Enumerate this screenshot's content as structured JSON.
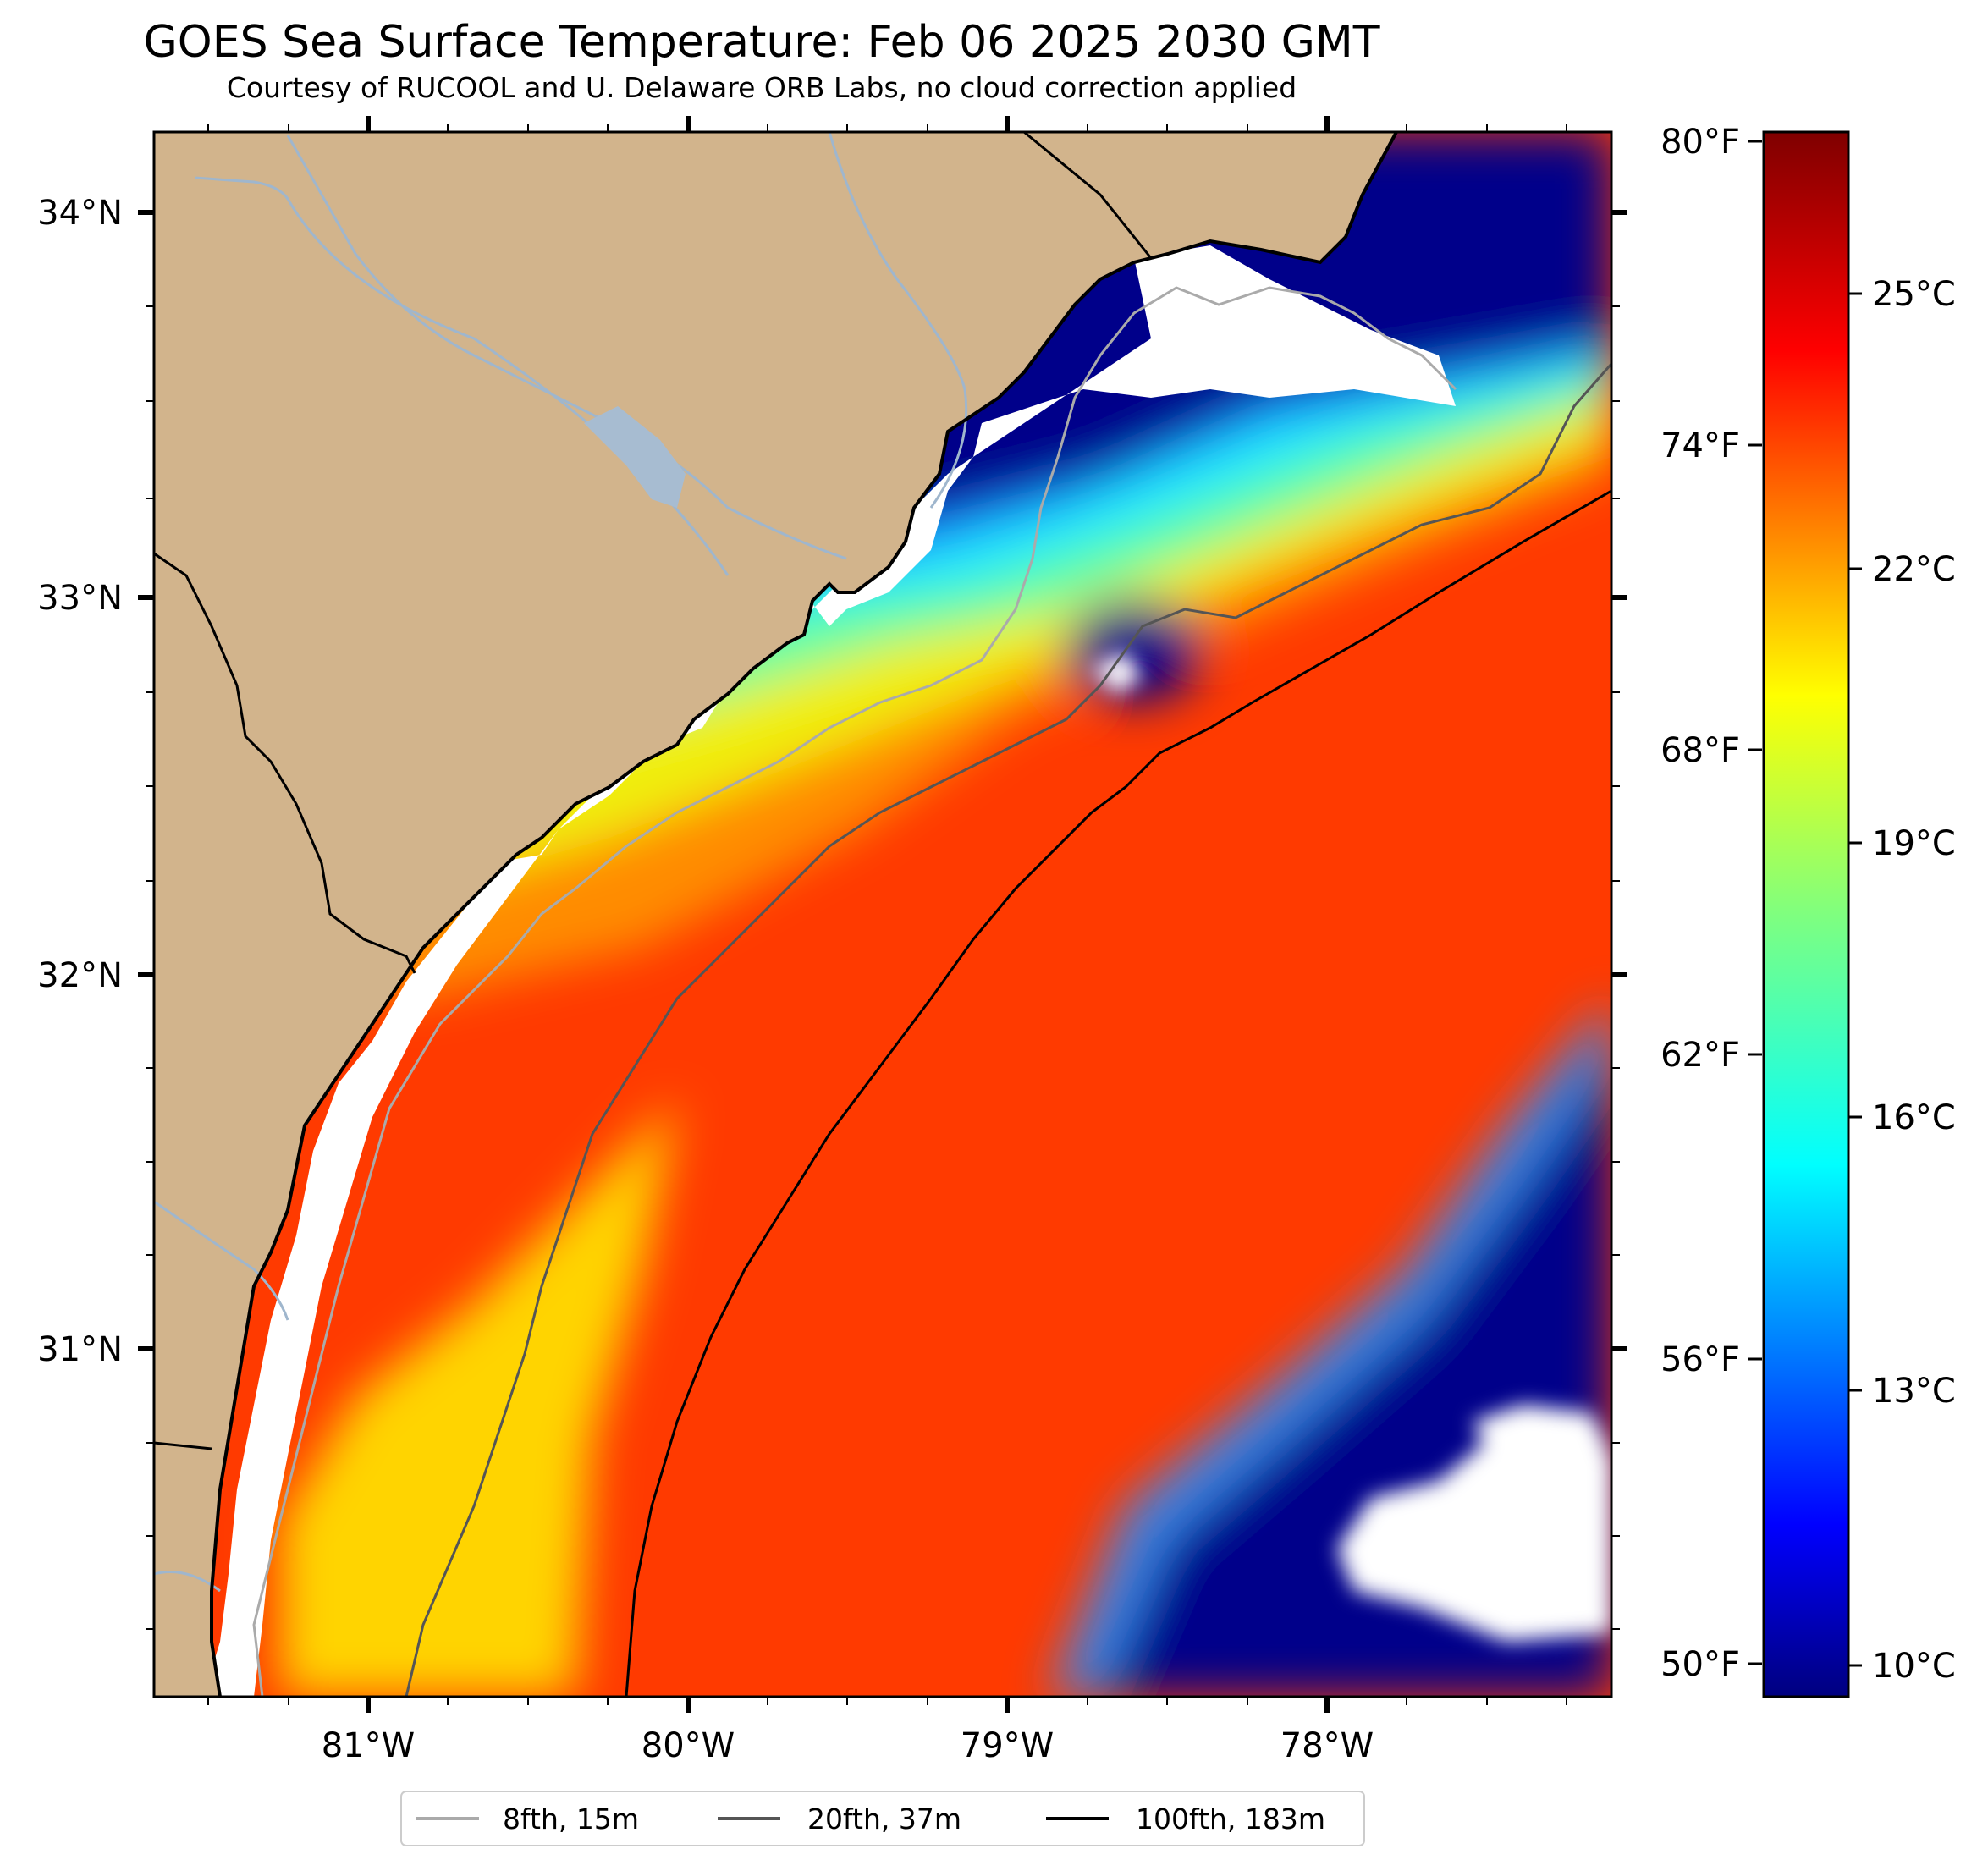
{
  "header": {
    "title": "GOES Sea Surface Temperature: Feb 06 2025 2030 GMT",
    "subtitle": "Courtesy of RUCOOL and U. Delaware ORB Labs, no cloud correction applied"
  },
  "map": {
    "lat_ticks": [
      "34°N",
      "33°N",
      "32°N",
      "31°N"
    ],
    "lon_ticks": [
      "81°W",
      "80°W",
      "79°W",
      "78°W"
    ],
    "lat_range": [
      30.1,
      34.22
    ],
    "lon_range": [
      -81.67,
      -77.1
    ]
  },
  "colorbar": {
    "celsius_labels": [
      "25°C",
      "22°C",
      "19°C",
      "16°C",
      "13°C",
      "10°C"
    ],
    "fahrenheit_labels": [
      "80°F",
      "74°F",
      "68°F",
      "62°F",
      "56°F",
      "50°F"
    ],
    "colormap": [
      "#00007f",
      "#0000ff",
      "#007fff",
      "#00ffff",
      "#7fff7f",
      "#ffff00",
      "#ff7f00",
      "#ff0000",
      "#7f0000"
    ],
    "range_celsius": [
      9.5,
      27.2
    ]
  },
  "legend": {
    "items": [
      {
        "label": "8fth, 15m",
        "color": "#aaaaaa"
      },
      {
        "label": "20fth, 37m",
        "color": "#555555"
      },
      {
        "label": "100fth, 183m",
        "color": "#000000"
      }
    ]
  },
  "colors": {
    "land": "#d2b48c",
    "no_data": "#ffffff",
    "rivers": "#9fb6cd"
  }
}
